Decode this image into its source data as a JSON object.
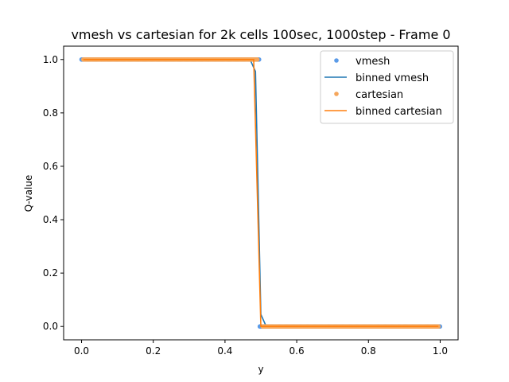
{
  "chart_data": {
    "type": "scatter",
    "title": "vmesh vs cartesian for 2k cells 100sec, 1000step - Frame 0",
    "xlabel": "y",
    "ylabel": "Q-value",
    "xlim": [
      -0.05,
      1.05
    ],
    "ylim": [
      -0.05,
      1.05
    ],
    "xticks": [
      "0.0",
      "0.2",
      "0.4",
      "0.6",
      "0.8",
      "1.0"
    ],
    "yticks": [
      "0.0",
      "0.2",
      "0.4",
      "0.6",
      "0.8",
      "1.0"
    ],
    "grid": false,
    "legend_position": "top-right",
    "series": [
      {
        "name": "vmesh",
        "kind": "scatter",
        "color": "#5b9be8",
        "segments": [
          {
            "x_start": 0.0,
            "x_end": 0.497,
            "y": 1.0
          },
          {
            "x_start": 0.497,
            "x_end": 1.0,
            "y": 0.0
          }
        ]
      },
      {
        "name": "binned vmesh",
        "kind": "line",
        "color": "#1f77b4",
        "x": [
          0.005,
          0.47,
          0.485,
          0.5,
          0.515,
          0.53,
          0.995
        ],
        "y": [
          1.0,
          1.0,
          0.955,
          0.045,
          0.0,
          0.0,
          0.0
        ]
      },
      {
        "name": "cartesian",
        "kind": "scatter",
        "color": "#f5a65b",
        "segments": [
          {
            "x_start": 0.005,
            "x_end": 0.49,
            "y": 1.0
          },
          {
            "x_start": 0.505,
            "x_end": 0.995,
            "y": 0.0
          }
        ]
      },
      {
        "name": "binned cartesian",
        "kind": "line",
        "color": "#ff7f0e",
        "x": [
          0.005,
          0.48,
          0.5,
          0.995
        ],
        "y": [
          1.0,
          1.0,
          0.0,
          0.0
        ]
      }
    ]
  }
}
